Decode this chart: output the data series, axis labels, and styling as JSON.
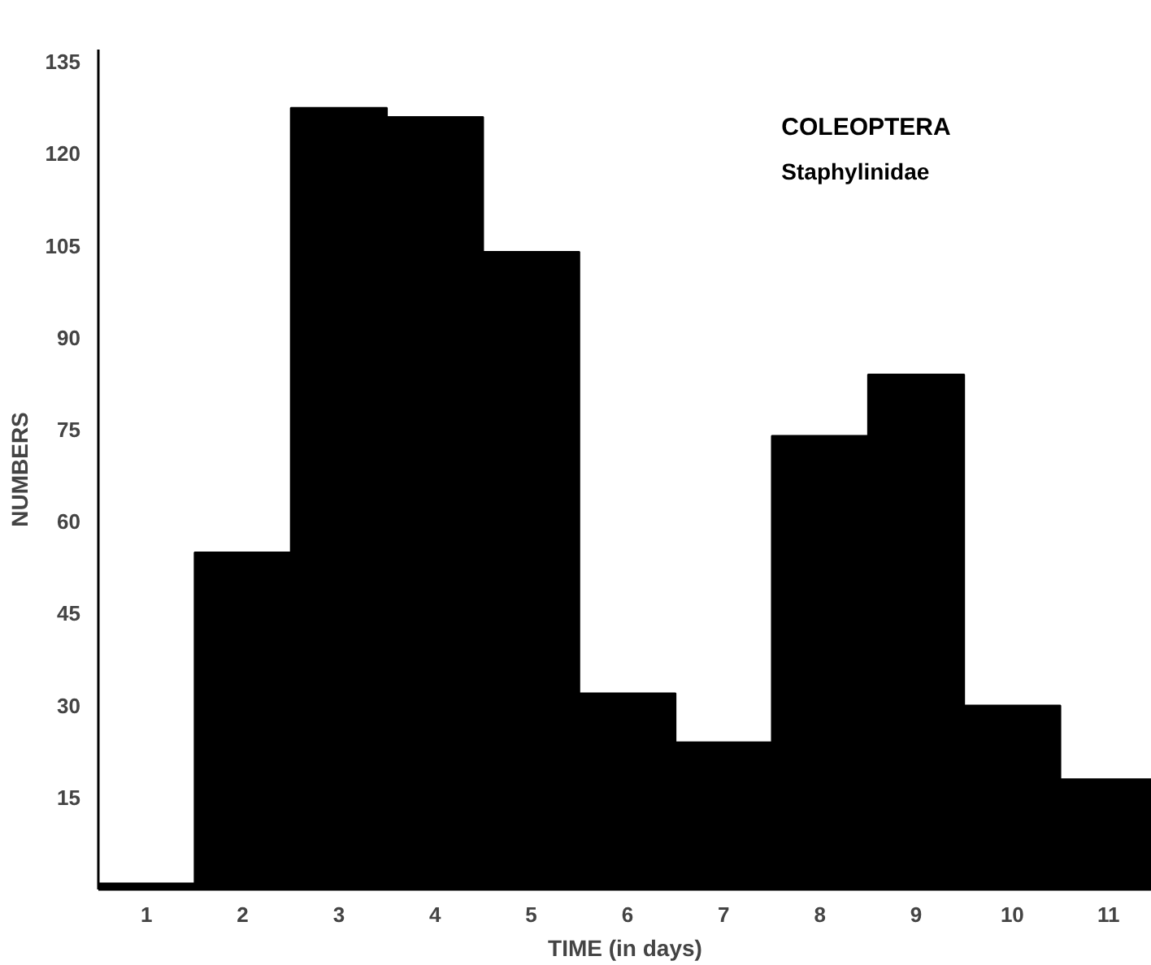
{
  "chart_data": {
    "type": "bar",
    "categories": [
      "1",
      "2",
      "3",
      "4",
      "5",
      "6",
      "7",
      "8",
      "9",
      "10",
      "11"
    ],
    "values": [
      1,
      55,
      127.5,
      126,
      104,
      32,
      24,
      74,
      84,
      30,
      18
    ],
    "color": "#000000",
    "xlabel": "TIME (in days)",
    "ylabel": "NUMBERS",
    "ylim": [
      0,
      137
    ],
    "yticks": [
      15,
      30,
      45,
      60,
      75,
      90,
      105,
      120,
      135
    ],
    "grid": false,
    "annotations": [
      "COLEOPTERA",
      "Staphylinidae"
    ]
  }
}
